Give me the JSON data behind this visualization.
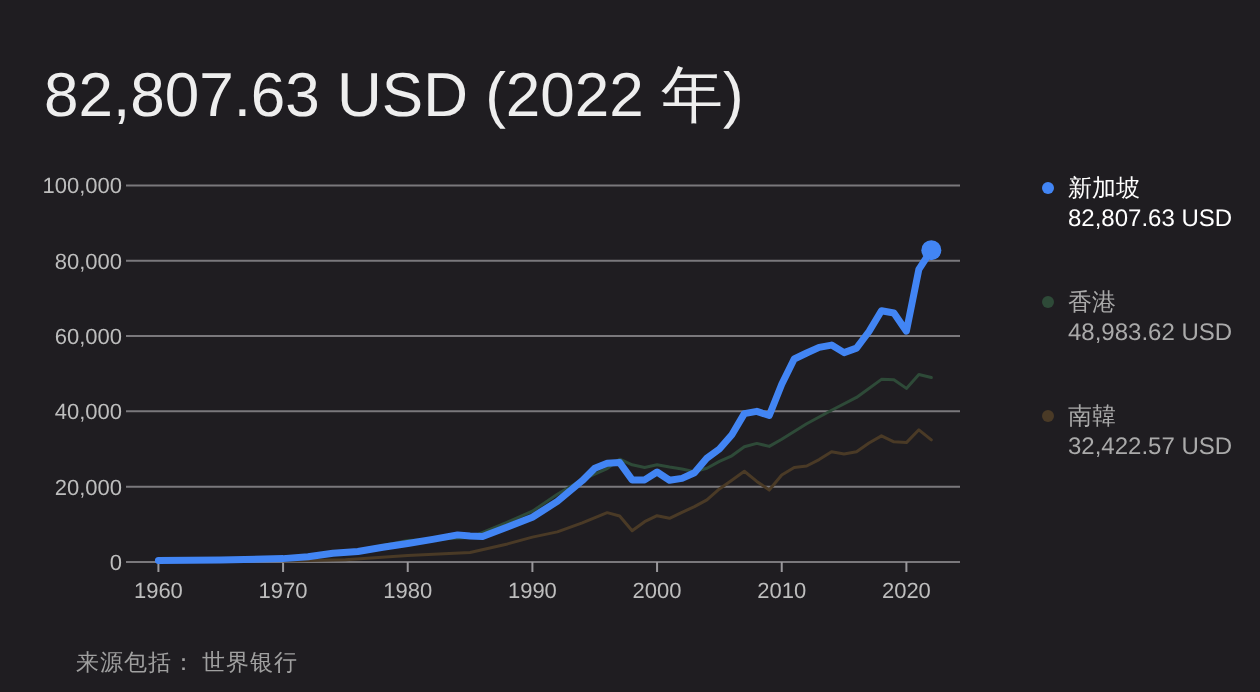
{
  "chart_data": {
    "type": "line",
    "title": "82,807.63 USD (2022 年)",
    "legend": "right",
    "grid": "y",
    "xlim": [
      1957.4,
      2024.3
    ],
    "xticks": [
      1960,
      1970,
      1980,
      1990,
      2000,
      2010,
      2020
    ],
    "ylim": [
      0,
      100000
    ],
    "yticks": [
      {
        "value": 0,
        "label": "0"
      },
      {
        "value": 20000,
        "label": "20,000"
      },
      {
        "value": 40000,
        "label": "40,000"
      },
      {
        "value": 60000,
        "label": "60,000"
      },
      {
        "value": 80000,
        "label": "80,000"
      },
      {
        "value": 100000,
        "label": "100,000"
      }
    ],
    "series": [
      {
        "name": "新加坡",
        "color": "#4285f4",
        "x": [
          1960,
          1965,
          1970,
          1972,
          1974,
          1976,
          1978,
          1980,
          1982,
          1984,
          1985,
          1986,
          1988,
          1990,
          1992,
          1994,
          1995,
          1996,
          1997,
          1998,
          1999,
          2000,
          2001,
          2002,
          2003,
          2004,
          2005,
          2006,
          2007,
          2008,
          2009,
          2010,
          2011,
          2012,
          2013,
          2014,
          2015,
          2016,
          2017,
          2018,
          2019,
          2020,
          2021,
          2022
        ],
        "values": [
          400,
          500,
          900,
          1400,
          2300,
          2800,
          3900,
          4900,
          6000,
          7200,
          6900,
          6800,
          9300,
          11900,
          16100,
          21600,
          24900,
          26200,
          26400,
          21800,
          21800,
          23900,
          21700,
          22200,
          23700,
          27600,
          30000,
          33800,
          39400,
          40000,
          38900,
          47200,
          53900,
          55500,
          57000,
          57600,
          55600,
          56800,
          61200,
          66700,
          66100,
          61300,
          77700,
          82807.63
        ]
      },
      {
        "name": "香港",
        "color": "#2e4a38",
        "x": [
          1970,
          1975,
          1980,
          1985,
          1988,
          1990,
          1992,
          1994,
          1996,
          1997,
          1998,
          1999,
          2000,
          2001,
          2002,
          2003,
          2004,
          2005,
          2006,
          2007,
          2008,
          2009,
          2010,
          2012,
          2014,
          2016,
          2018,
          2019,
          2020,
          2021,
          2022
        ],
        "values": [
          1000,
          2300,
          5700,
          6500,
          10600,
          13500,
          18000,
          21900,
          24800,
          27300,
          25800,
          25100,
          25800,
          25200,
          24700,
          24000,
          24900,
          26700,
          28200,
          30600,
          31500,
          30700,
          32600,
          36700,
          40300,
          43700,
          48500,
          48400,
          46100,
          49800,
          48983.62
        ]
      },
      {
        "name": "南韓",
        "color": "#4a3a26",
        "x": [
          1970,
          1975,
          1980,
          1985,
          1988,
          1990,
          1992,
          1994,
          1996,
          1997,
          1998,
          1999,
          2000,
          2001,
          2002,
          2003,
          2004,
          2005,
          2006,
          2007,
          2008,
          2009,
          2010,
          2011,
          2012,
          2013,
          2014,
          2015,
          2016,
          2017,
          2018,
          2019,
          2020,
          2021,
          2022
        ],
        "values": [
          300,
          600,
          1700,
          2500,
          4800,
          6600,
          8000,
          10400,
          13100,
          12200,
          8300,
          10700,
          12300,
          11600,
          13200,
          14700,
          16500,
          19400,
          21700,
          24100,
          21400,
          19100,
          23100,
          25100,
          25500,
          27200,
          29300,
          28700,
          29300,
          31600,
          33500,
          31900,
          31700,
          35100,
          32422.57
        ]
      }
    ],
    "annotations": [
      "82,807.63 USD",
      "48,983.62 USD",
      "32,422.57 USD",
      "来源包括： 世界银行"
    ]
  }
}
